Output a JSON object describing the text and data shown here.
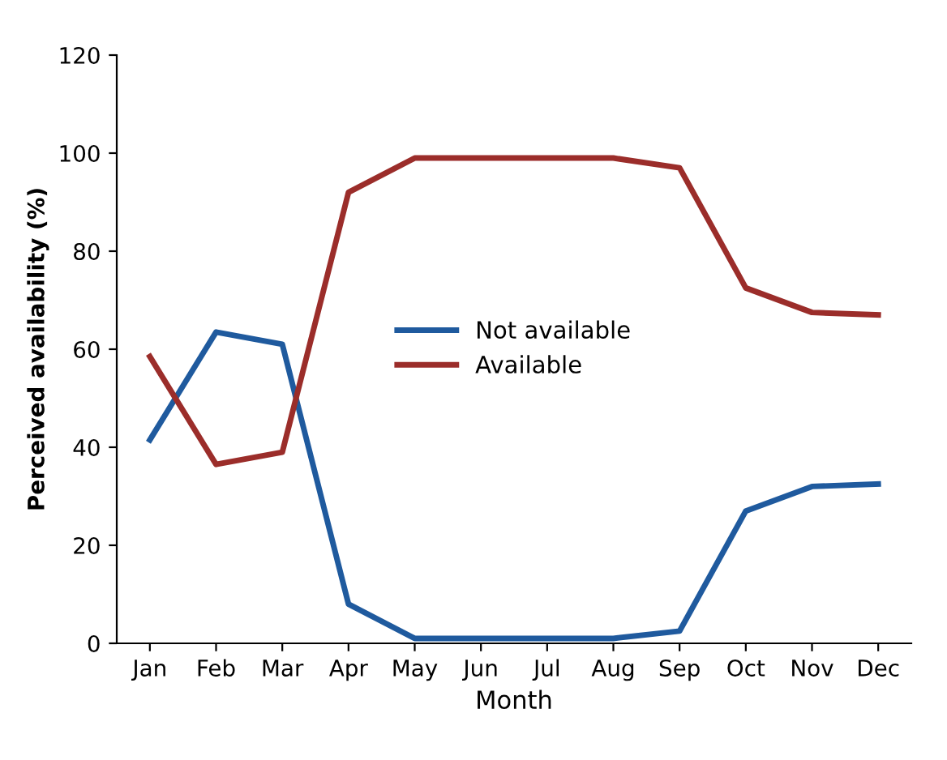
{
  "chart_data": {
    "type": "line",
    "xlabel": "Month",
    "ylabel": "Perceived availability (%)",
    "categories": [
      "Jan",
      "Feb",
      "Mar",
      "Apr",
      "May",
      "Jun",
      "Jul",
      "Aug",
      "Sep",
      "Oct",
      "Nov",
      "Dec"
    ],
    "series": [
      {
        "name": "Not available",
        "color": "#1f5a9e",
        "values": [
          41.5,
          63.5,
          61,
          8,
          1,
          1,
          1,
          1,
          2.5,
          27,
          32,
          32.5
        ]
      },
      {
        "name": "Available",
        "color": "#9b2d2a",
        "values": [
          58.5,
          36.5,
          39,
          92,
          99,
          99,
          99,
          99,
          97,
          72.5,
          67.5,
          67
        ]
      }
    ],
    "ylim": [
      0,
      120
    ],
    "yticks": [
      0,
      20,
      40,
      60,
      80,
      100,
      120
    ],
    "grid": false,
    "legend": "center",
    "marker": "none",
    "line_style": "solid"
  }
}
